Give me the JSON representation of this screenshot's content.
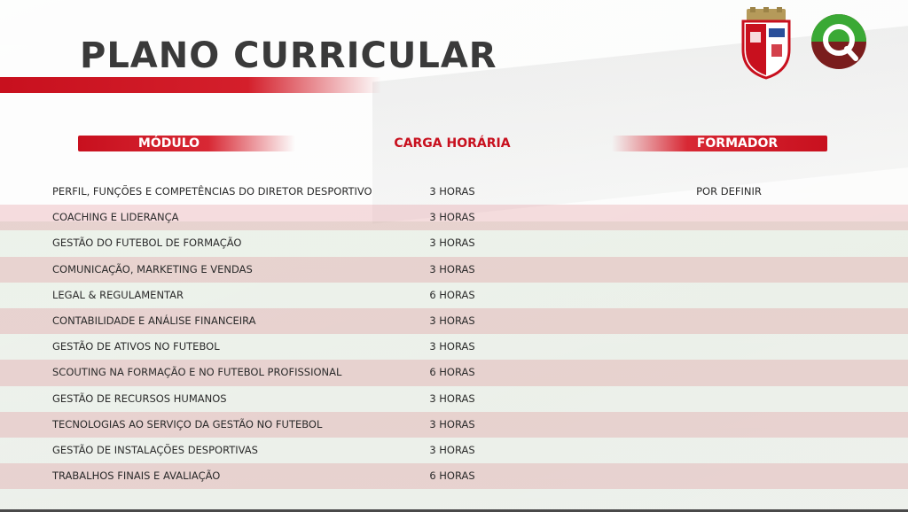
{
  "slide": {
    "title": "PLANO CURRICULAR",
    "colors": {
      "accent_red": "#c8101e",
      "title_gray": "#3a3a3a",
      "logo_green": "#3aa935",
      "logo_maroon": "#7a1d1d"
    }
  },
  "logos": {
    "crest_icon": "club-crest-icon",
    "brand_icon": "q-logo-icon"
  },
  "table": {
    "headers": {
      "modulo": "MÓDULO",
      "carga": "CARGA HORÁRIA",
      "formador": "FORMADOR"
    },
    "rows": [
      {
        "modulo": "PERFIL, FUNÇÕES E COMPETÊNCIAS DO DIRETOR DESPORTIVO",
        "horas": "3 HORAS",
        "formador": "POR DEFINIR"
      },
      {
        "modulo": "COACHING E LIDERANÇA",
        "horas": "3 HORAS",
        "formador": ""
      },
      {
        "modulo": "GESTÃO DO FUTEBOL DE FORMAÇÃO",
        "horas": "3 HORAS",
        "formador": ""
      },
      {
        "modulo": "COMUNICAÇÃO, MARKETING E VENDAS",
        "horas": "3 HORAS",
        "formador": ""
      },
      {
        "modulo": "LEGAL & REGULAMENTAR",
        "horas": "6 HORAS",
        "formador": ""
      },
      {
        "modulo": "CONTABILIDADE E ANÁLISE FINANCEIRA",
        "horas": "3 HORAS",
        "formador": ""
      },
      {
        "modulo": "GESTÃO DE ATIVOS NO FUTEBOL",
        "horas": "3 HORAS",
        "formador": ""
      },
      {
        "modulo": "SCOUTING NA FORMAÇÃO E NO FUTEBOL PROFISSIONAL",
        "horas": "6 HORAS",
        "formador": ""
      },
      {
        "modulo": "GESTÃO DE RECURSOS HUMANOS",
        "horas": "3 HORAS",
        "formador": ""
      },
      {
        "modulo": "TECNOLOGIAS AO SERVIÇO DA GESTÃO NO FUTEBOL",
        "horas": "3 HORAS",
        "formador": ""
      },
      {
        "modulo": "GESTÃO DE INSTALAÇÕES DESPORTIVAS",
        "horas": "3 HORAS",
        "formador": ""
      },
      {
        "modulo": "TRABALHOS FINAIS E AVALIAÇÃO",
        "horas": "6 HORAS",
        "formador": ""
      }
    ]
  }
}
